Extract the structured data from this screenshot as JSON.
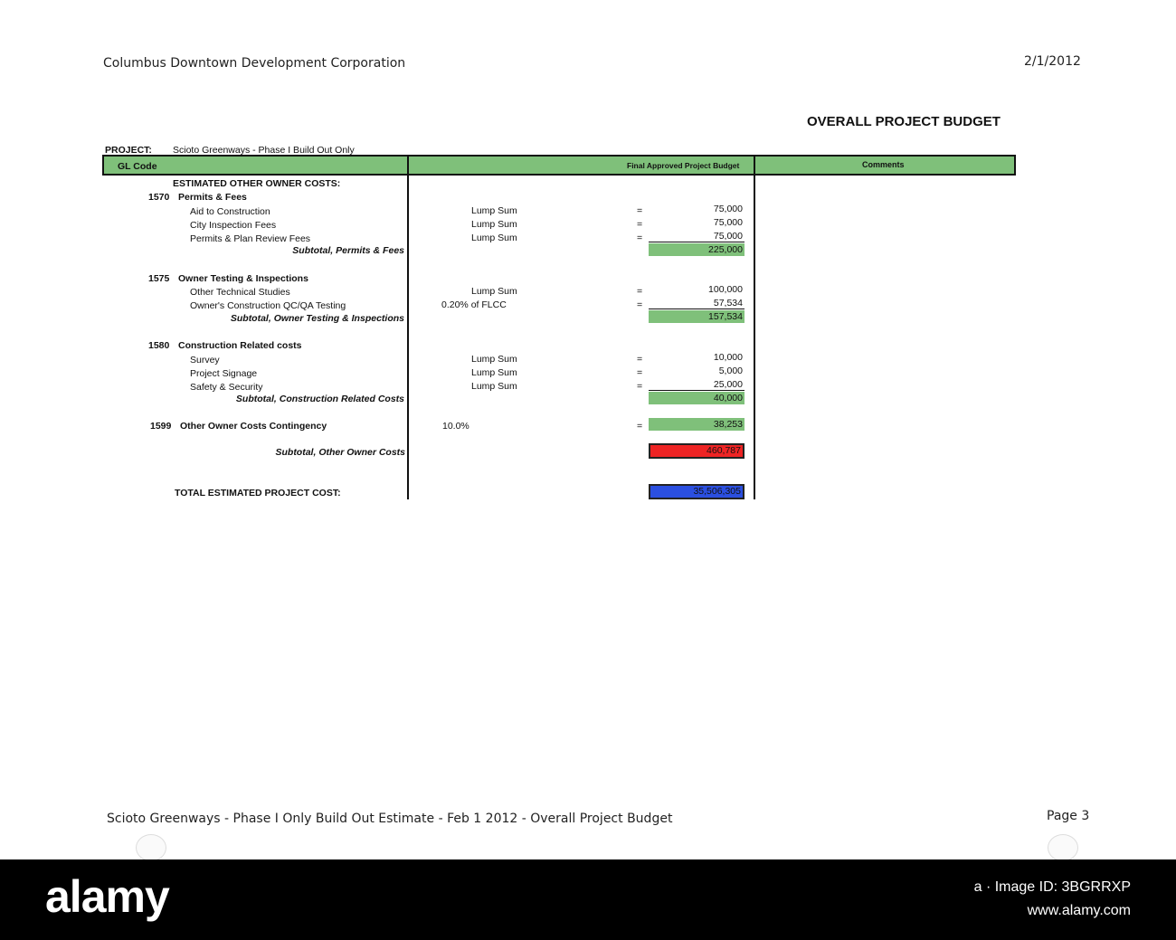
{
  "header": {
    "org": "Columbus Downtown Development Corporation",
    "date": "2/1/2012",
    "title": "OVERALL PROJECT BUDGET"
  },
  "project": {
    "label": "PROJECT:",
    "name": "Scioto Greenways - Phase I Build Out Only"
  },
  "table_header": {
    "gl_code": "GL Code",
    "budget": "Final Approved Project Budget",
    "comments": "Comments"
  },
  "section_title": "ESTIMATED OTHER OWNER COSTS:",
  "groups": [
    {
      "code": "1570",
      "name": "Permits & Fees",
      "items": [
        {
          "name": "Aid to Construction",
          "basis": "Lump Sum",
          "eq": "=",
          "amount": "75,000"
        },
        {
          "name": "City Inspection Fees",
          "basis": "Lump Sum",
          "eq": "=",
          "amount": "75,000"
        },
        {
          "name": "Permits & Plan Review Fees",
          "basis": "Lump Sum",
          "eq": "=",
          "amount": "75,000"
        }
      ],
      "subtotal_label": "Subtotal, Permits & Fees",
      "subtotal": "225,000"
    },
    {
      "code": "1575",
      "name": "Owner Testing & Inspections",
      "items": [
        {
          "name": "Other Technical Studies",
          "basis": "Lump Sum",
          "eq": "=",
          "amount": "100,000"
        },
        {
          "name": "Owner's Construction QC/QA Testing",
          "basis": "0.20% of FLCC",
          "eq": "=",
          "amount": "57,534"
        }
      ],
      "subtotal_label": "Subtotal, Owner Testing & Inspections",
      "subtotal": "157,534"
    },
    {
      "code": "1580",
      "name": "Construction Related costs",
      "items": [
        {
          "name": "Survey",
          "basis": "Lump Sum",
          "eq": "=",
          "amount": "10,000"
        },
        {
          "name": "Project Signage",
          "basis": "Lump Sum",
          "eq": "=",
          "amount": "5,000"
        },
        {
          "name": "Safety & Security",
          "basis": "Lump Sum",
          "eq": "=",
          "amount": "25,000"
        }
      ],
      "subtotal_label": "Subtotal, Construction Related Costs",
      "subtotal": "40,000"
    }
  ],
  "contingency": {
    "code": "1599",
    "name": "Other Owner Costs Contingency",
    "basis": "10.0%",
    "eq": "=",
    "amount": "38,253"
  },
  "other_owner_subtotal": {
    "label": "Subtotal, Other Owner Costs",
    "amount": "460,787"
  },
  "total": {
    "label": "TOTAL ESTIMATED PROJECT COST:",
    "amount": "35,506,305"
  },
  "footer": {
    "text": "Scioto Greenways - Phase I Only Build Out Estimate - Feb 1 2012  -  Overall Project Budget",
    "page": "Page 3"
  },
  "watermark": {
    "logo": "alamy",
    "id": "a · Image ID: 3BGRRXP",
    "url": "www.alamy.com"
  },
  "colors": {
    "green": "#7fc07a",
    "red": "#ee2424",
    "blue": "#2b4fe0"
  }
}
